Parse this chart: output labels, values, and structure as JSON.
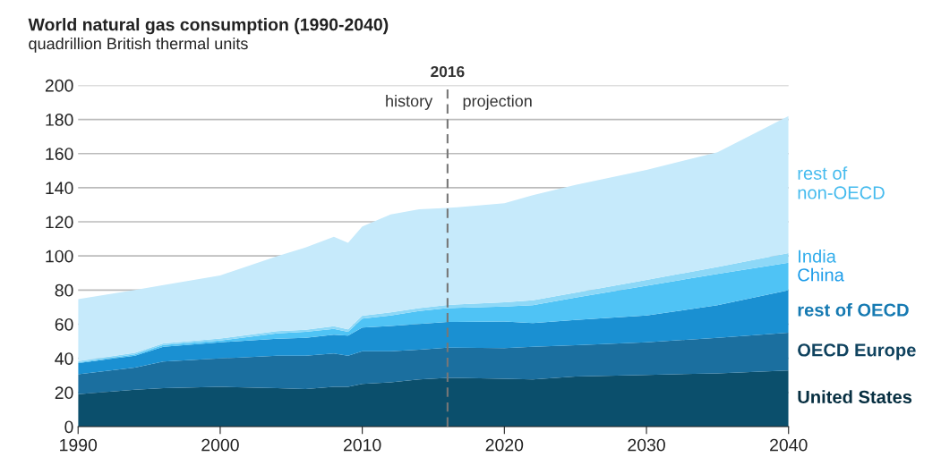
{
  "chart_data": {
    "type": "area",
    "stacked": true,
    "title": "World natural gas consumption (1990-2040)",
    "subtitle": "quadrillion British thermal units",
    "x": [
      1990,
      1994,
      1996,
      2000,
      2004,
      2006,
      2008,
      2009,
      2010,
      2012,
      2014,
      2016,
      2020,
      2022,
      2025,
      2030,
      2035,
      2040
    ],
    "series": [
      {
        "name": "United States",
        "color": "#0b4f6c",
        "values": [
          19,
          21.6,
          22.5,
          23.3,
          22.5,
          22,
          23.3,
          23.3,
          25,
          26,
          27.7,
          28.6,
          28,
          27.7,
          29.4,
          30.3,
          31.2,
          32.9
        ]
      },
      {
        "name": "OECD Europe",
        "color": "#1b6f9f",
        "values": [
          11.6,
          13,
          15.6,
          16.6,
          19.1,
          19.6,
          19.5,
          18.3,
          19.2,
          18.2,
          17.4,
          17.7,
          18,
          19.1,
          18.3,
          19.1,
          20.8,
          22.1
        ]
      },
      {
        "name": "rest of OECD",
        "color": "#1a90d2",
        "values": [
          6.6,
          7,
          8.7,
          9.5,
          9.9,
          10.4,
          11,
          11.7,
          13.9,
          14.8,
          15.1,
          15,
          15.6,
          13.9,
          14.8,
          15.7,
          19.2,
          24.9
        ]
      },
      {
        "name": "China",
        "color": "#4fc3f5",
        "values": [
          0.4,
          0.7,
          1,
          1.1,
          3.2,
          3.5,
          3.5,
          2.2,
          5.2,
          6.1,
          7.5,
          8.2,
          8.7,
          10.5,
          13.1,
          17.4,
          18.3,
          16.2
        ]
      },
      {
        "name": "India",
        "color": "#8dd8f7",
        "values": [
          0.8,
          0.9,
          1,
          1.1,
          1.2,
          1.3,
          1.5,
          1.5,
          1.7,
          1.9,
          1.8,
          1.8,
          2.5,
          2.8,
          2.9,
          3.5,
          4,
          5.6
        ]
      },
      {
        "name": "rest of\nnon-OECD",
        "color": "#c6eafb",
        "values": [
          36.3,
          36.8,
          34.1,
          37,
          44,
          48.2,
          52.4,
          50.7,
          52.3,
          57.3,
          57.9,
          56.8,
          58.1,
          61.6,
          63.2,
          64.4,
          67.3,
          80.3
        ]
      }
    ],
    "xlim": [
      1990,
      2040
    ],
    "xticks": [
      1990,
      2000,
      2010,
      2020,
      2030,
      2040
    ],
    "ylim": [
      0,
      200
    ],
    "yticks": [
      0,
      20,
      40,
      60,
      80,
      100,
      120,
      140,
      160,
      180,
      200
    ],
    "grid": "y",
    "ref_lines": [
      {
        "axis": "x",
        "value": 2016,
        "label": "2016",
        "color": "#777777",
        "line_style": "dashed"
      }
    ],
    "annotations": [
      "history",
      "projection"
    ]
  }
}
